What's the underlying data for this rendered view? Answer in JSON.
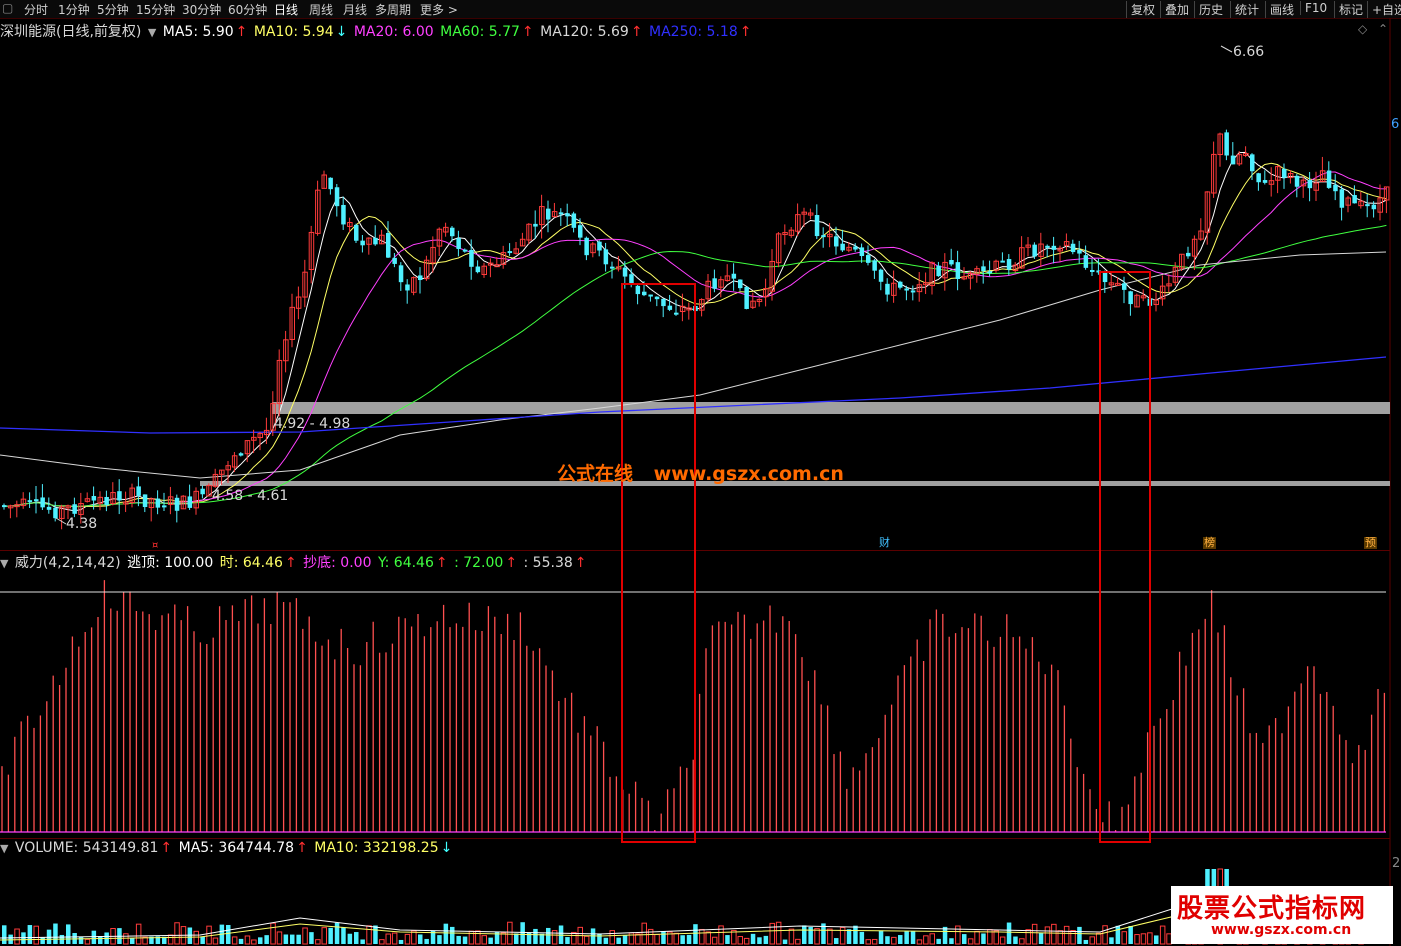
{
  "toolbar": {
    "periods": [
      "分时",
      "1分钟",
      "5分钟",
      "15分钟",
      "30分钟",
      "60分钟",
      "日线",
      "周线",
      "月线",
      "多周期",
      "更多 >"
    ],
    "active_period": "日线",
    "right_buttons": [
      "复权",
      "叠加",
      "历史",
      "统计",
      "画线",
      "F10",
      "标记",
      "+自选"
    ]
  },
  "main_legend": {
    "title": "深圳能源(日线,前复权)",
    "ma5": {
      "label": "MA5: 5.90",
      "arrow": "↑",
      "color": "#ffffff"
    },
    "ma10": {
      "label": "MA10: 5.94",
      "arrow": "↓",
      "color": "#ffff66"
    },
    "ma20": {
      "label": "MA20: 6.00",
      "arrow": "",
      "color": "#ff40ff"
    },
    "ma60": {
      "label": "MA60: 5.77",
      "arrow": "↑",
      "color": "#40ff40"
    },
    "ma120": {
      "label": "MA120: 5.69",
      "arrow": "↑",
      "color": "#d8d8d8"
    },
    "ma250": {
      "label": "MA250: 5.18",
      "arrow": "↑",
      "color": "#3030ff"
    }
  },
  "price_labels": {
    "high": "6.66",
    "low": "4.38",
    "band_upper": "4.92 - 4.98",
    "band_lower": "4.58 - 4.61"
  },
  "right_axis": {
    "partial_label": "6"
  },
  "watermark": {
    "part1": "公式在线",
    "part2": "www.gszx.com.cn"
  },
  "events": {
    "cai": "财",
    "bang": "榜",
    "yu": "预"
  },
  "indicator_legend": {
    "name": "威力(4,2,14,42)",
    "taoding": "逃顶: 100.00",
    "shi": "时: 64.46",
    "chaodi": "抄底: 0.00",
    "y": "Y: 64.46",
    "v72": ": 72.00",
    "v55": ": 55.38"
  },
  "volume_legend": {
    "volume": "VOLUME: 543149.81",
    "ma5": "MA5: 364744.78",
    "ma10": "MA10: 332198.25"
  },
  "volume_axis": {
    "partial_label": "2"
  },
  "logo": {
    "title": "股票公式指标网",
    "url": "www.gszx.com.cn"
  },
  "colors": {
    "up": "#ff3b3b",
    "down": "#4ff0ff",
    "highlight_box": "#e00000",
    "band": "#a0a0a0"
  }
}
